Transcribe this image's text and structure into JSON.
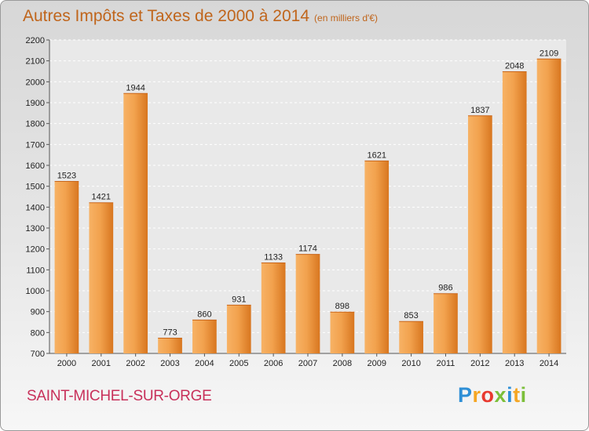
{
  "title": "Autres Impôts et Taxes de 2000 à 2014",
  "unit": "(en milliers d'€)",
  "location": "SAINT-MICHEL-SUR-ORGE",
  "logo": {
    "letters": [
      "P",
      "r",
      "o",
      "x",
      "i",
      "t",
      "i"
    ],
    "colors": [
      "#2e8fd6",
      "#f5a623",
      "#e8392f",
      "#7cbf3a",
      "#2e8fd6",
      "#f5a623",
      "#7cbf3a"
    ]
  },
  "colors": {
    "bar_light": "#f7b265",
    "bar_dark": "#d8761f",
    "title": "#c0651b",
    "location": "#c8305a"
  },
  "chart_data": {
    "type": "bar",
    "categories": [
      "2000",
      "2001",
      "2002",
      "2003",
      "2004",
      "2005",
      "2006",
      "2007",
      "2008",
      "2009",
      "2010",
      "2011",
      "2012",
      "2013",
      "2014"
    ],
    "values": [
      1523,
      1421,
      1944,
      773,
      860,
      931,
      1133,
      1174,
      898,
      1621,
      853,
      986,
      1837,
      2048,
      2109
    ],
    "ylim": [
      700,
      2200
    ],
    "yticks": [
      700,
      800,
      900,
      1000,
      1100,
      1200,
      1300,
      1400,
      1500,
      1600,
      1700,
      1800,
      1900,
      2000,
      2100,
      2200
    ],
    "grid": true,
    "data_labels": true
  }
}
